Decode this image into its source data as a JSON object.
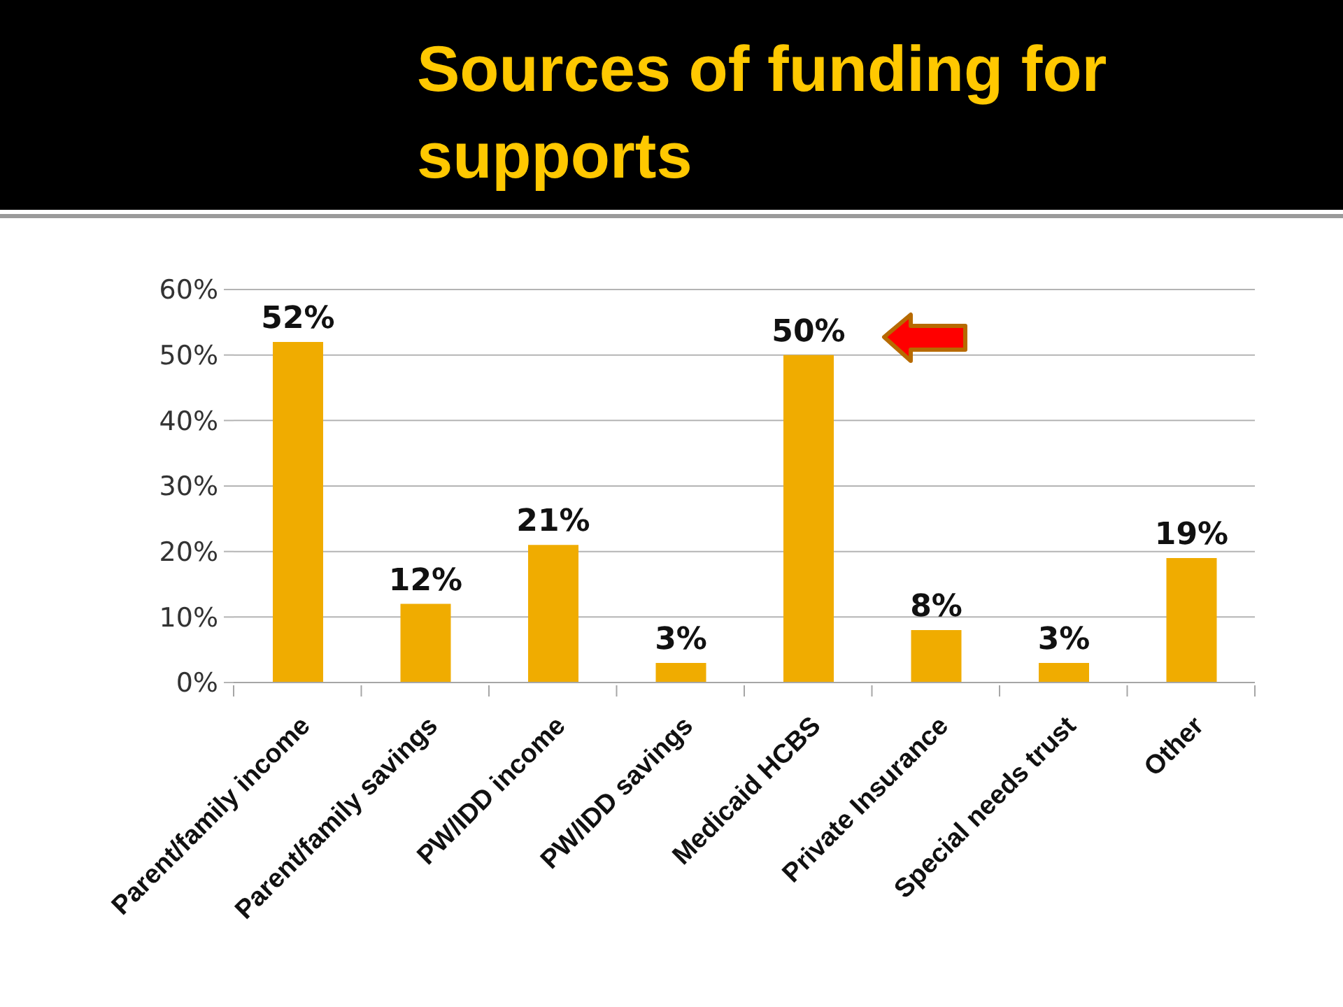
{
  "chart_data": {
    "type": "bar",
    "title": "Sources of funding for supports",
    "categories": [
      "Parent/family income",
      "Parent/family savings",
      "PW/IDD income",
      "PW/IDD savings",
      "Medicaid HCBS",
      "Private Insurance",
      "Special needs trust",
      "Other"
    ],
    "values": [
      52,
      12,
      21,
      3,
      50,
      8,
      3,
      19
    ],
    "color": "#f0ac00",
    "value_labels": [
      "52%",
      "12%",
      "21%",
      "3%",
      "50%",
      "8%",
      "3%",
      "19%"
    ],
    "ylim": [
      0,
      60
    ],
    "yticks": [
      {
        "value": 0,
        "label": "0%"
      },
      {
        "value": 10,
        "label": "10%"
      },
      {
        "value": 20,
        "label": "20%"
      },
      {
        "value": 30,
        "label": "30%"
      },
      {
        "value": 40,
        "label": "40%"
      },
      {
        "value": 50,
        "label": "50%"
      },
      {
        "value": 60,
        "label": "60%"
      }
    ],
    "grid": "y"
  }
}
